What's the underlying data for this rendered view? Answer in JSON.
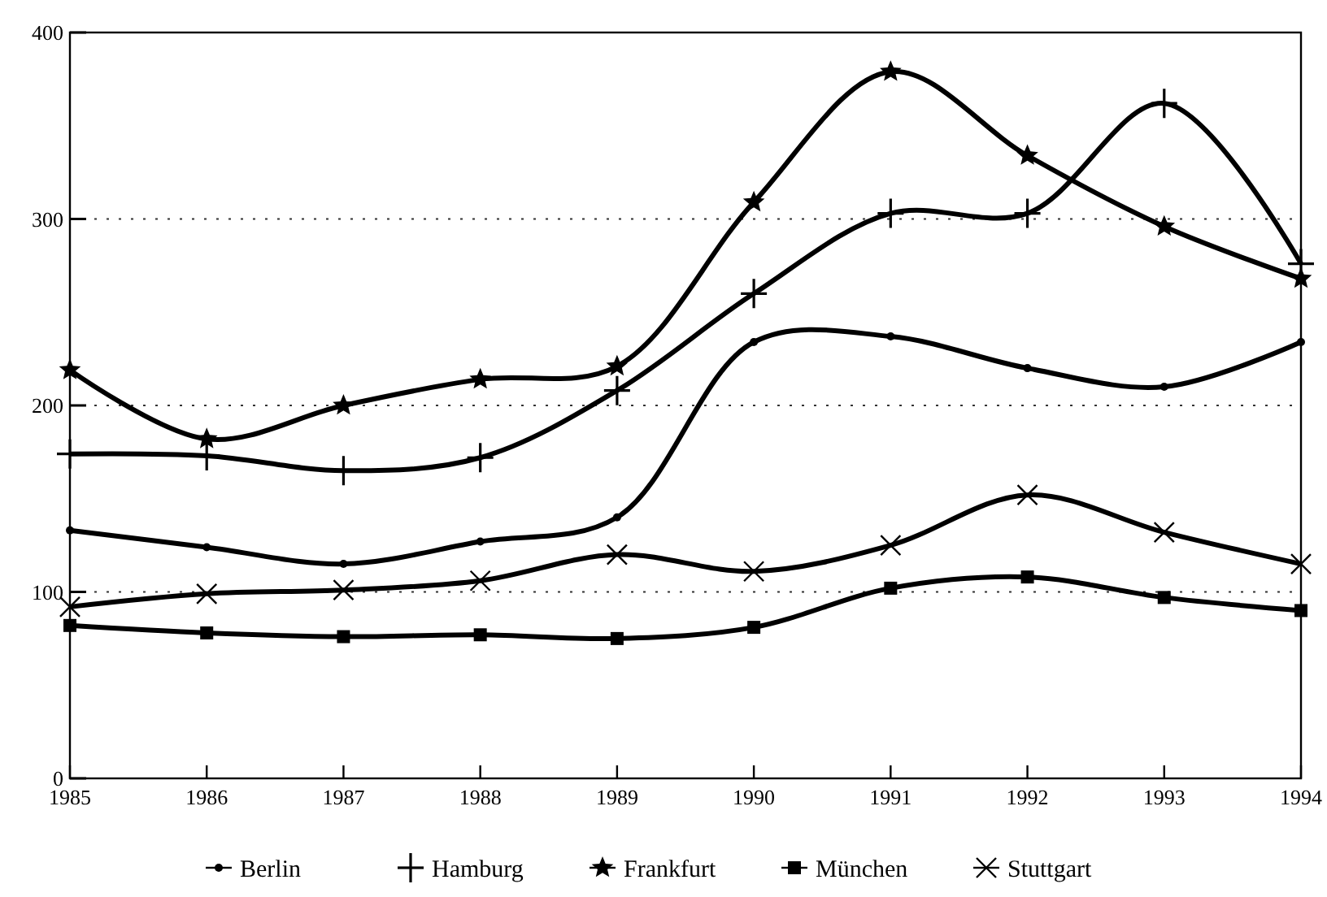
{
  "chart_data": {
    "type": "line",
    "x": [
      1985,
      1986,
      1987,
      1988,
      1989,
      1990,
      1991,
      1992,
      1993,
      1994
    ],
    "xlim": [
      1985,
      1994
    ],
    "xticks": [
      1985,
      1986,
      1987,
      1988,
      1989,
      1990,
      1991,
      1992,
      1993,
      1994
    ],
    "ylim": [
      0,
      400
    ],
    "yticks": [
      0,
      100,
      200,
      300,
      400
    ],
    "grid": "y",
    "legend": "bottom",
    "series": [
      {
        "name": "Berlin",
        "color": "#000000",
        "marker": "circle",
        "values": [
          133,
          124,
          115,
          127,
          140,
          234,
          237,
          220,
          210,
          234
        ]
      },
      {
        "name": "Hamburg",
        "color": "#000000",
        "marker": "plus",
        "values": [
          174,
          173,
          165,
          172,
          208,
          260,
          303,
          303,
          362,
          276
        ]
      },
      {
        "name": "Frankfurt",
        "color": "#000000",
        "marker": "star",
        "values": [
          219,
          182,
          200,
          214,
          221,
          309,
          379,
          334,
          296,
          268
        ]
      },
      {
        "name": "München",
        "color": "#000000",
        "marker": "square",
        "values": [
          82,
          78,
          76,
          77,
          75,
          81,
          102,
          108,
          97,
          90
        ]
      },
      {
        "name": "Stuttgart",
        "color": "#000000",
        "marker": "cross",
        "values": [
          92,
          99,
          101,
          106,
          120,
          111,
          125,
          152,
          132,
          115
        ]
      }
    ]
  }
}
